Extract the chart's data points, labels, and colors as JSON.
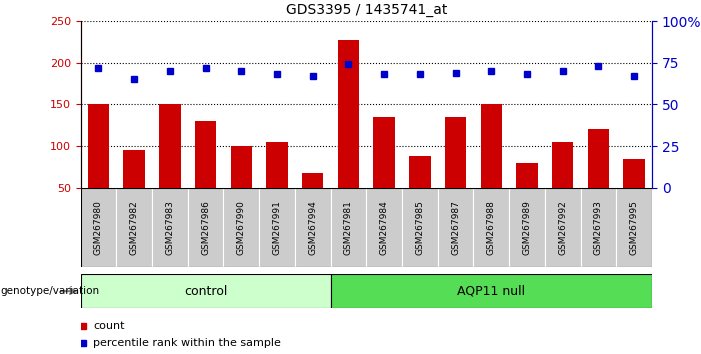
{
  "title": "GDS3395 / 1435741_at",
  "samples": [
    "GSM267980",
    "GSM267982",
    "GSM267983",
    "GSM267986",
    "GSM267990",
    "GSM267991",
    "GSM267994",
    "GSM267981",
    "GSM267984",
    "GSM267985",
    "GSM267987",
    "GSM267988",
    "GSM267989",
    "GSM267992",
    "GSM267993",
    "GSM267995"
  ],
  "counts": [
    150,
    95,
    150,
    130,
    100,
    105,
    67,
    228,
    135,
    88,
    135,
    150,
    80,
    105,
    120,
    85
  ],
  "percentile_ranks": [
    72,
    65,
    70,
    72,
    70,
    68,
    67,
    74,
    68,
    68,
    69,
    70,
    68,
    70,
    73,
    67
  ],
  "n_control": 7,
  "n_aqp11": 9,
  "ylim_left": [
    50,
    250
  ],
  "ylim_right": [
    0,
    100
  ],
  "yticks_left": [
    50,
    100,
    150,
    200,
    250
  ],
  "yticks_right": [
    0,
    25,
    50,
    75,
    100
  ],
  "bar_color": "#cc0000",
  "dot_color": "#0000cc",
  "control_bg": "#ccffcc",
  "aqp11_bg": "#55dd55",
  "label_bg": "#cccccc",
  "bar_bottom": 50,
  "bar_width": 0.6,
  "legend_count_label": "count",
  "legend_pct_label": "percentile rank within the sample",
  "genotype_label": "genotype/variation"
}
